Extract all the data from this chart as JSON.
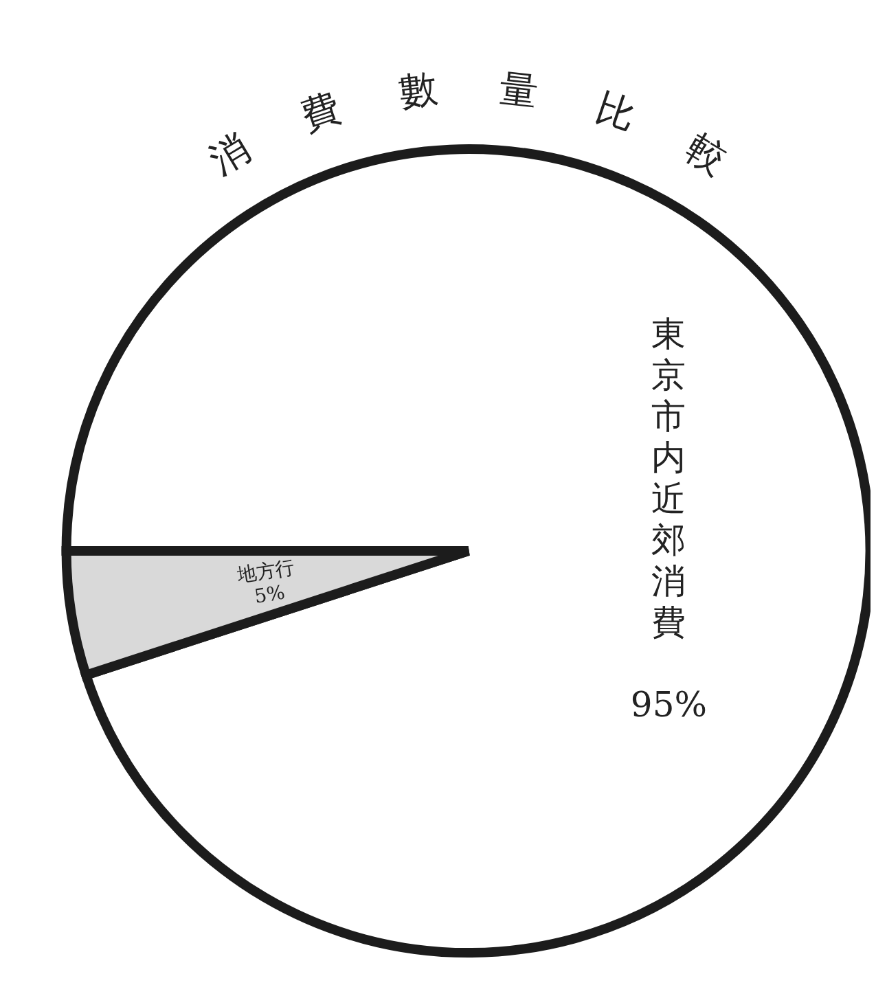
{
  "chart_data": {
    "type": "pie",
    "title": "消費數量比較",
    "categories": [
      "東京市内近郊消費",
      "地方行"
    ],
    "values": [
      95,
      5
    ],
    "value_labels": [
      "95%",
      "5%"
    ],
    "colors": [
      "#ffffff",
      "#d9d9d9"
    ],
    "legend": false
  }
}
